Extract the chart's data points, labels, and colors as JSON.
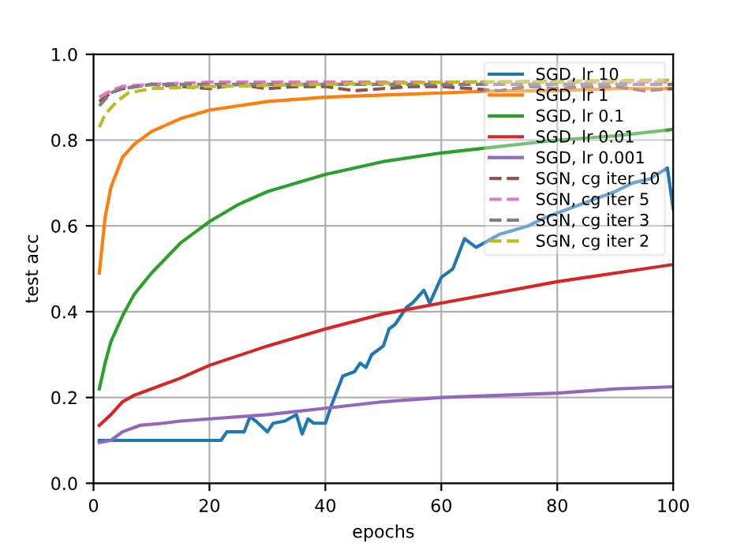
{
  "chart_data": {
    "type": "line",
    "xlabel": "epochs",
    "ylabel": "test acc",
    "xlim": [
      0,
      100
    ],
    "ylim": [
      0,
      1
    ],
    "xticks": [
      0,
      20,
      40,
      60,
      80,
      100
    ],
    "yticks": [
      {
        "value": 0,
        "label": "0.0"
      },
      {
        "value": 0.2,
        "label": "0.2"
      },
      {
        "value": 0.4,
        "label": "0.4"
      },
      {
        "value": 0.6,
        "label": "0.6"
      },
      {
        "value": 0.8,
        "label": "0.8"
      },
      {
        "value": 1,
        "label": "1.0"
      }
    ],
    "grid": true,
    "legend": "top right",
    "series": [
      {
        "name": "SGD, lr 10",
        "color": "#1f77b4",
        "line_style": "solid",
        "x": [
          1,
          5,
          8,
          10,
          13,
          15,
          18,
          20,
          22,
          23,
          26,
          27,
          28,
          30,
          31,
          33,
          35,
          36,
          37,
          38,
          40,
          41,
          43,
          45,
          46,
          47,
          48,
          50,
          51,
          52,
          54,
          55,
          57,
          58,
          60,
          62,
          64,
          66,
          70,
          75,
          78,
          82,
          86,
          90,
          93,
          96,
          99,
          100
        ],
        "values": [
          0.1,
          0.1,
          0.1,
          0.1,
          0.1,
          0.1,
          0.1,
          0.1,
          0.1,
          0.12,
          0.12,
          0.155,
          0.145,
          0.12,
          0.14,
          0.145,
          0.16,
          0.115,
          0.15,
          0.14,
          0.14,
          0.18,
          0.25,
          0.26,
          0.28,
          0.27,
          0.3,
          0.32,
          0.36,
          0.37,
          0.41,
          0.42,
          0.45,
          0.42,
          0.48,
          0.5,
          0.57,
          0.55,
          0.58,
          0.6,
          0.62,
          0.64,
          0.66,
          0.68,
          0.7,
          0.71,
          0.735,
          0.64
        ]
      },
      {
        "name": "SGD, lr 1",
        "color": "#ff7f0e",
        "line_style": "solid",
        "x": [
          1,
          2,
          3,
          5,
          7,
          10,
          15,
          20,
          30,
          40,
          50,
          60,
          70,
          80,
          90,
          100
        ],
        "values": [
          0.49,
          0.62,
          0.69,
          0.76,
          0.79,
          0.82,
          0.85,
          0.87,
          0.89,
          0.9,
          0.905,
          0.91,
          0.915,
          0.915,
          0.92,
          0.92
        ]
      },
      {
        "name": "SGD, lr 0.1",
        "color": "#2ca02c",
        "line_style": "solid",
        "x": [
          1,
          2,
          3,
          5,
          7,
          10,
          15,
          20,
          25,
          30,
          40,
          50,
          60,
          70,
          80,
          90,
          100
        ],
        "values": [
          0.22,
          0.28,
          0.33,
          0.39,
          0.44,
          0.49,
          0.56,
          0.61,
          0.65,
          0.68,
          0.72,
          0.75,
          0.77,
          0.785,
          0.8,
          0.81,
          0.825
        ]
      },
      {
        "name": "SGD, lr 0.01",
        "color": "#d62728",
        "line_style": "solid",
        "x": [
          1,
          3,
          5,
          7,
          10,
          15,
          20,
          30,
          40,
          50,
          60,
          70,
          80,
          90,
          100
        ],
        "values": [
          0.135,
          0.16,
          0.19,
          0.205,
          0.22,
          0.245,
          0.275,
          0.32,
          0.36,
          0.395,
          0.42,
          0.445,
          0.47,
          0.49,
          0.51
        ]
      },
      {
        "name": "SGD, lr 0.001",
        "color": "#9467bd",
        "line_style": "solid",
        "x": [
          1,
          3,
          5,
          8,
          12,
          15,
          20,
          30,
          40,
          50,
          60,
          70,
          80,
          90,
          100
        ],
        "values": [
          0.095,
          0.1,
          0.12,
          0.135,
          0.14,
          0.145,
          0.15,
          0.16,
          0.175,
          0.19,
          0.2,
          0.205,
          0.21,
          0.22,
          0.225
        ]
      },
      {
        "name": "SGN, cg iter 10",
        "color": "#8c564b",
        "line_style": "dashed",
        "x": [
          1,
          3,
          5,
          10,
          15,
          20,
          25,
          30,
          35,
          40,
          45,
          50,
          55,
          60,
          65,
          70,
          75,
          80,
          85,
          90,
          95,
          100
        ],
        "values": [
          0.89,
          0.91,
          0.92,
          0.93,
          0.925,
          0.92,
          0.93,
          0.92,
          0.925,
          0.925,
          0.915,
          0.92,
          0.925,
          0.925,
          0.92,
          0.915,
          0.925,
          0.92,
          0.925,
          0.925,
          0.915,
          0.92
        ]
      },
      {
        "name": "SGN, cg iter 5",
        "color": "#e377c2",
        "line_style": "dashed",
        "x": [
          1,
          3,
          5,
          10,
          20,
          40,
          60,
          80,
          100
        ],
        "values": [
          0.9,
          0.915,
          0.925,
          0.93,
          0.935,
          0.935,
          0.935,
          0.935,
          0.935
        ]
      },
      {
        "name": "SGN, cg iter 3",
        "color": "#7f7f7f",
        "line_style": "dashed",
        "x": [
          1,
          3,
          5,
          10,
          20,
          40,
          60,
          80,
          100
        ],
        "values": [
          0.88,
          0.91,
          0.92,
          0.93,
          0.93,
          0.93,
          0.93,
          0.93,
          0.93
        ]
      },
      {
        "name": "SGN, cg iter 2",
        "color": "#bcbd22",
        "line_style": "dashed",
        "x": [
          1,
          2,
          4,
          6,
          10,
          20,
          40,
          60,
          100
        ],
        "values": [
          0.83,
          0.86,
          0.89,
          0.91,
          0.92,
          0.925,
          0.93,
          0.935,
          0.94
        ]
      }
    ]
  }
}
